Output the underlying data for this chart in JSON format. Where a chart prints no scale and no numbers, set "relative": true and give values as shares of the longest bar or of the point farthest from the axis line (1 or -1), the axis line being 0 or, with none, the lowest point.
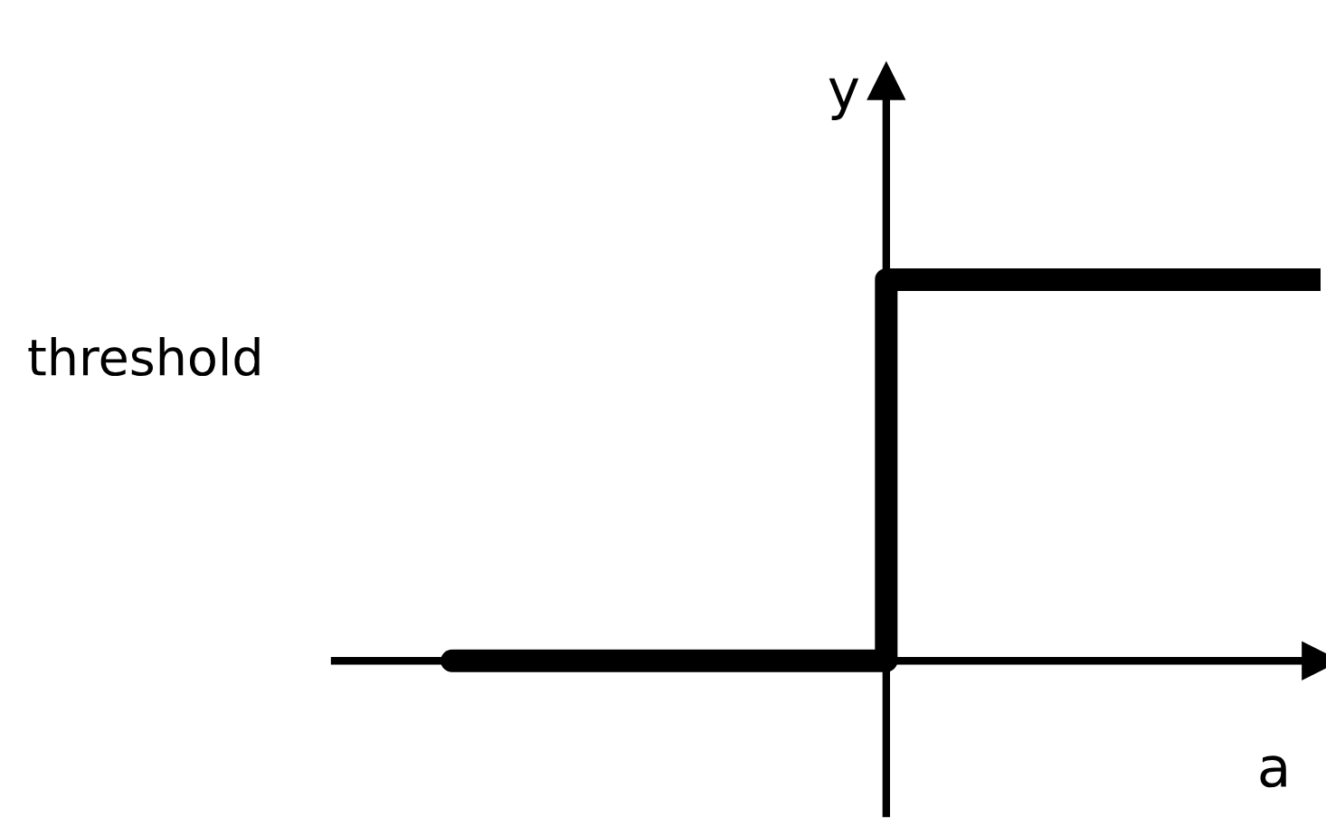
{
  "chart_data": {
    "type": "step",
    "relative": true,
    "categories": [
      null,
      null,
      null
    ],
    "values": [
      0,
      1,
      1
    ],
    "color": "#000000",
    "xlabel": "a",
    "ylabel": "y",
    "annotations": [
      "threshold"
    ],
    "tick_labels": false
  }
}
